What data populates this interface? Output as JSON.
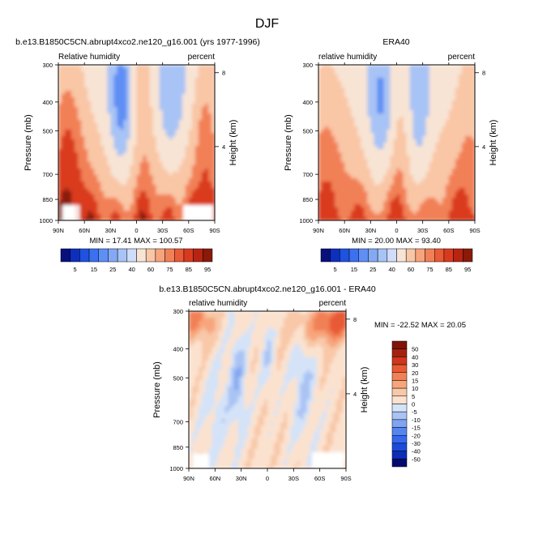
{
  "page_title": "DJF",
  "chart_data": [
    {
      "type": "heatmap",
      "id": "model",
      "title": "b.e13.B1850C5CN.abrupt4xco2.ne120_g16.001 (yrs 1977-1996)",
      "subtitle_left": "Relative humidity",
      "subtitle_right": "percent",
      "ylabel": "Pressure (mb)",
      "ylabel_right": "Height (km)",
      "x_ticks": [
        "90N",
        "60N",
        "30N",
        "0",
        "30S",
        "60S",
        "90S"
      ],
      "y_ticks": [
        300,
        400,
        500,
        700,
        850,
        1000
      ],
      "y_ticks_right": [
        8,
        4
      ],
      "stats": "MIN =  17.41  MAX = 100.57",
      "levels": [
        5,
        15,
        25,
        40,
        60,
        75,
        85,
        95
      ],
      "colorbar_labels": [
        "5",
        "15",
        "25",
        "40",
        "60",
        "75",
        "85",
        "95"
      ],
      "grid": false,
      "colorbar_placement": "bottom"
    },
    {
      "type": "heatmap",
      "id": "obs",
      "title": "ERA40",
      "subtitle_left": "relative humidity",
      "subtitle_right": "percent",
      "ylabel": "Pressure (mb)",
      "ylabel_right": "Height (km)",
      "x_ticks": [
        "90N",
        "60N",
        "30N",
        "0",
        "30S",
        "60S",
        "90S"
      ],
      "y_ticks": [
        300,
        400,
        500,
        700,
        850,
        1000
      ],
      "y_ticks_right": [
        8,
        4
      ],
      "stats": "MIN =  20.00  MAX =  93.40",
      "levels": [
        5,
        15,
        25,
        40,
        60,
        75,
        85,
        95
      ],
      "colorbar_labels": [
        "5",
        "15",
        "25",
        "40",
        "60",
        "75",
        "85",
        "95"
      ],
      "grid": false,
      "colorbar_placement": "bottom"
    },
    {
      "type": "heatmap",
      "id": "diff",
      "title": "b.e13.B1850C5CN.abrupt4xco2.ne120_g16.001 - ERA40",
      "subtitle_left": "relative humidity",
      "subtitle_right": "percent",
      "ylabel": "Pressure (mb)",
      "ylabel_right": "Height (km)",
      "x_ticks": [
        "90N",
        "60N",
        "30N",
        "0",
        "30S",
        "60S",
        "90S"
      ],
      "y_ticks": [
        300,
        400,
        500,
        700,
        850,
        1000
      ],
      "y_ticks_right": [
        8,
        4
      ],
      "stats": "MIN = -22.52  MAX =  20.05",
      "levels": [
        -50,
        -40,
        -30,
        -20,
        -15,
        -10,
        -5,
        0,
        5,
        10,
        15,
        20,
        30,
        40,
        50
      ],
      "colorbar_labels": [
        "50",
        "40",
        "30",
        "20",
        "15",
        "10",
        "5",
        "0",
        "-5",
        "-10",
        "-15",
        "-20",
        "-30",
        "-40",
        "-50"
      ],
      "grid": false,
      "colorbar_placement": "right"
    }
  ],
  "colors": {
    "seq": [
      "#08107e",
      "#0c2fbd",
      "#1e52e0",
      "#3b70f0",
      "#5f8ef5",
      "#84a9f4",
      "#a8c3f5",
      "#cfddf8",
      "#f8e4d4",
      "#f9c6a6",
      "#f7a47c",
      "#f28057",
      "#e95a36",
      "#d93a1f",
      "#b82412",
      "#8a1a0a"
    ],
    "div": [
      "#030b6f",
      "#0b2db8",
      "#1c4bdb",
      "#3568ec",
      "#5685f2",
      "#7fa4f1",
      "#a9c3f4",
      "#d4e3f8",
      "#fbe2cf",
      "#f8c8a8",
      "#f7a57c",
      "#f28056",
      "#e85a34",
      "#d0361b",
      "#a6200f",
      "#801409"
    ]
  }
}
